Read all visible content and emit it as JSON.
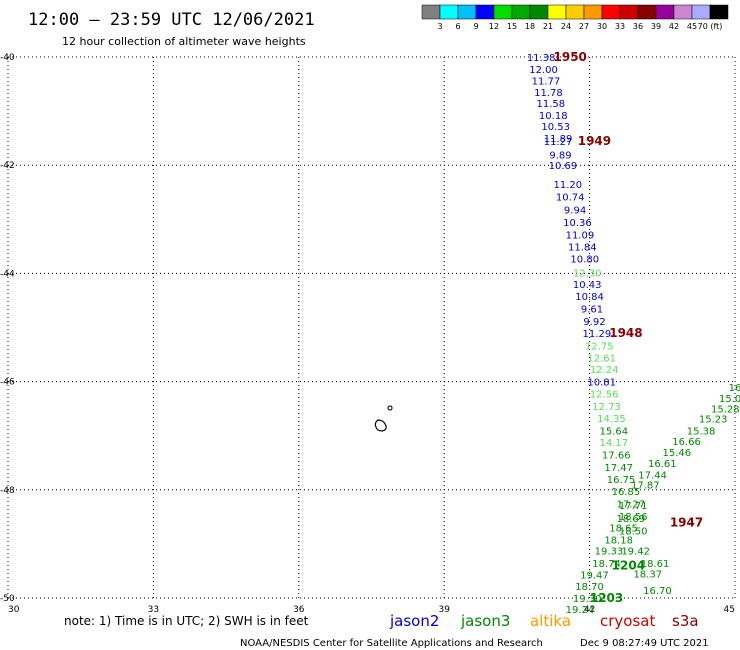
{
  "header": {
    "title": "12:00 — 23:59 UTC 12/06/2021",
    "subtitle": "12 hour collection of altimeter wave heights"
  },
  "colorbar": {
    "colors": [
      "#808080",
      "#00ffff",
      "#00bfff",
      "#0000ff",
      "#00dd00",
      "#00aa00",
      "#008800",
      "#ffff00",
      "#ffcc00",
      "#ff9900",
      "#ff0000",
      "#cc0000",
      "#880000",
      "#990099",
      "#cc88cc",
      "#aaaaff",
      "#000000"
    ],
    "labels": [
      "3",
      "6",
      "9",
      "12",
      "15",
      "18",
      "21",
      "24",
      "27",
      "30",
      "33",
      "36",
      "39",
      "42",
      "45",
      "70 (ft)"
    ]
  },
  "footer": {
    "note": "note: 1) Time is in UTC; 2) SWH is in feet",
    "satellites": [
      {
        "name": "jason2",
        "color": "#0000cc"
      },
      {
        "name": "jason3",
        "color": "#008800"
      },
      {
        "name": "altika",
        "color": "#ff9900"
      },
      {
        "name": "cryosat",
        "color": "#cc0000"
      },
      {
        "name": "s3a",
        "color": "#880000"
      }
    ],
    "credit": "NOAA/NESDIS Center for Satellite Applications and Research",
    "timestamp": "Dec  9 08:27:49 UTC 2021"
  },
  "chart_data": {
    "type": "scatter",
    "xlim": [
      30,
      45
    ],
    "ylim": [
      -50,
      -40
    ],
    "x_ticks": [
      "30",
      "33",
      "36",
      "39",
      "42",
      "45"
    ],
    "y_ticks": [
      "-40",
      "-42",
      "-44",
      "-46",
      "-48",
      "-50"
    ],
    "grid": true,
    "series": [
      {
        "name": "jason2",
        "color": "#0000cc",
        "points": [
          {
            "x": 41.0,
            "y": -40.0,
            "label": "11.38"
          },
          {
            "x": 41.05,
            "y": -40.22,
            "label": "12.00"
          },
          {
            "x": 41.1,
            "y": -40.43,
            "label": "11.77"
          },
          {
            "x": 41.15,
            "y": -40.65,
            "label": "11.78"
          },
          {
            "x": 41.2,
            "y": -40.85,
            "label": "11.58"
          },
          {
            "x": 41.25,
            "y": -41.07,
            "label": "10.18"
          },
          {
            "x": 41.3,
            "y": -41.28,
            "label": "10.53"
          },
          {
            "x": 41.35,
            "y": -41.5,
            "label": "11.89"
          },
          {
            "x": 41.35,
            "y": -41.55,
            "label": "11.27"
          },
          {
            "x": 41.4,
            "y": -41.8,
            "label": "9.89"
          },
          {
            "x": 41.45,
            "y": -42.0,
            "label": "10.69"
          },
          {
            "x": 41.55,
            "y": -42.35,
            "label": "11.20"
          },
          {
            "x": 41.6,
            "y": -42.58,
            "label": "10.74"
          },
          {
            "x": 41.7,
            "y": -42.82,
            "label": "9.94"
          },
          {
            "x": 41.75,
            "y": -43.05,
            "label": "10.36"
          },
          {
            "x": 41.8,
            "y": -43.28,
            "label": "11.09"
          },
          {
            "x": 41.85,
            "y": -43.5,
            "label": "11.84"
          },
          {
            "x": 41.9,
            "y": -43.72,
            "label": "10.80"
          },
          {
            "x": 41.95,
            "y": -44.2,
            "label": "10.43"
          },
          {
            "x": 42.0,
            "y": -44.42,
            "label": "10.84"
          },
          {
            "x": 42.05,
            "y": -44.65,
            "label": "9.61"
          },
          {
            "x": 42.1,
            "y": -44.88,
            "label": "9.92"
          },
          {
            "x": 42.15,
            "y": -45.1,
            "label": "11.29"
          },
          {
            "x": 42.25,
            "y": -46.0,
            "label": "10.81"
          }
        ]
      },
      {
        "name": "jason3-light",
        "color": "#55dd55",
        "points": [
          {
            "x": 41.95,
            "y": -43.98,
            "label": "12.30"
          },
          {
            "x": 42.2,
            "y": -45.33,
            "label": "12.75"
          },
          {
            "x": 42.25,
            "y": -45.55,
            "label": "12.61"
          },
          {
            "x": 42.3,
            "y": -45.77,
            "label": "12.24"
          },
          {
            "x": 42.3,
            "y": -46.22,
            "label": "12.56"
          },
          {
            "x": 42.35,
            "y": -46.45,
            "label": "12.73"
          },
          {
            "x": 42.45,
            "y": -46.67,
            "label": "14.35"
          },
          {
            "x": 42.5,
            "y": -47.12,
            "label": "14.17"
          }
        ]
      },
      {
        "name": "jason3",
        "color": "#008800",
        "points": [
          {
            "x": 42.5,
            "y": -46.9,
            "label": "15.64"
          },
          {
            "x": 42.55,
            "y": -47.35,
            "label": "17.66"
          },
          {
            "x": 42.6,
            "y": -47.58,
            "label": "17.47"
          },
          {
            "x": 42.65,
            "y": -47.8,
            "label": "16.75"
          },
          {
            "x": 42.75,
            "y": -48.02,
            "label": "16.85"
          },
          {
            "x": 42.85,
            "y": -48.25,
            "label": "17.27"
          },
          {
            "x": 42.9,
            "y": -48.28,
            "label": "17.71"
          },
          {
            "x": 42.9,
            "y": -48.48,
            "label": "18.56"
          },
          {
            "x": 42.85,
            "y": -48.52,
            "label": "18.69"
          },
          {
            "x": 42.7,
            "y": -48.7,
            "label": "18.65"
          },
          {
            "x": 42.9,
            "y": -48.75,
            "label": "18.50"
          },
          {
            "x": 42.6,
            "y": -48.92,
            "label": "18.18"
          },
          {
            "x": 42.4,
            "y": -49.12,
            "label": "19.33"
          },
          {
            "x": 42.95,
            "y": -49.12,
            "label": "19.42"
          },
          {
            "x": 42.35,
            "y": -49.35,
            "label": "18.74"
          },
          {
            "x": 42.1,
            "y": -49.57,
            "label": "19.47"
          },
          {
            "x": 42.0,
            "y": -49.78,
            "label": "18.70"
          },
          {
            "x": 41.95,
            "y": -50.0,
            "label": "19.30"
          },
          {
            "x": 41.8,
            "y": -50.2,
            "label": "19.24"
          },
          {
            "x": 43.15,
            "y": -47.9,
            "label": "17.87"
          },
          {
            "x": 43.3,
            "y": -47.72,
            "label": "17.44"
          },
          {
            "x": 43.5,
            "y": -47.5,
            "label": "16.61"
          },
          {
            "x": 43.8,
            "y": -47.3,
            "label": "15.46"
          },
          {
            "x": 44.0,
            "y": -47.1,
            "label": "16.66"
          },
          {
            "x": 44.3,
            "y": -46.9,
            "label": "15.38"
          },
          {
            "x": 44.55,
            "y": -46.68,
            "label": "15.23"
          },
          {
            "x": 44.8,
            "y": -46.5,
            "label": "15.28"
          },
          {
            "x": 44.9,
            "y": -46.3,
            "label": "15.0"
          },
          {
            "x": 45.0,
            "y": -46.1,
            "label": "16"
          },
          {
            "x": 43.35,
            "y": -49.35,
            "label": "18.61"
          },
          {
            "x": 43.2,
            "y": -49.55,
            "label": "18.37"
          },
          {
            "x": 43.4,
            "y": -49.85,
            "label": "16.70"
          }
        ]
      }
    ],
    "time_labels": [
      {
        "x": 41.6,
        "y": -40.0,
        "text": "1950",
        "color": "#880000"
      },
      {
        "x": 42.1,
        "y": -41.55,
        "text": "1949",
        "color": "#880000"
      },
      {
        "x": 42.75,
        "y": -45.1,
        "text": "1948",
        "color": "#880000"
      },
      {
        "x": 44.0,
        "y": -48.6,
        "text": "1947",
        "color": "#880000"
      },
      {
        "x": 42.8,
        "y": -49.4,
        "text": "1204",
        "color": "#008800"
      },
      {
        "x": 42.35,
        "y": -50.0,
        "text": "1203",
        "color": "#008800"
      }
    ]
  }
}
